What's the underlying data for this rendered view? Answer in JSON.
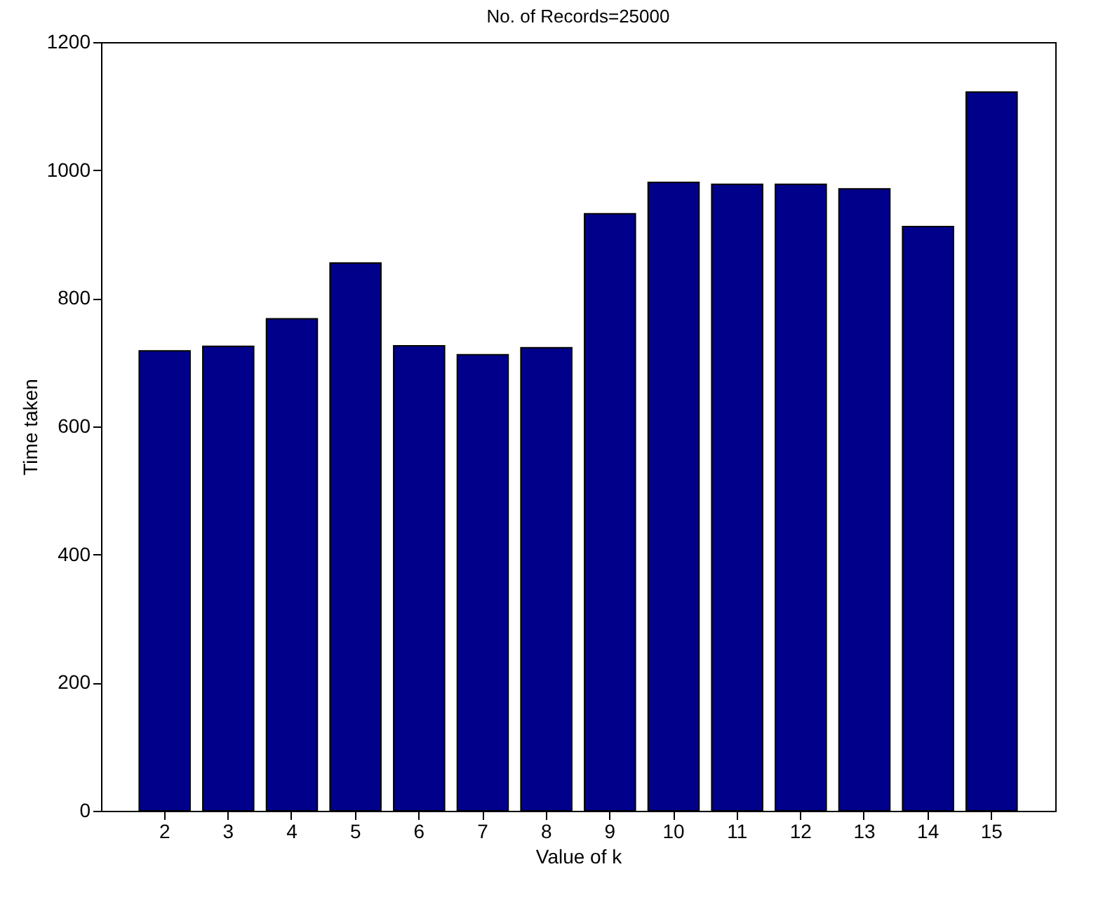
{
  "chart_data": {
    "type": "bar",
    "title": "No. of Records=25000",
    "xlabel": "Value of k",
    "ylabel": "Time taken",
    "categories": [
      "2",
      "3",
      "4",
      "5",
      "6",
      "7",
      "8",
      "9",
      "10",
      "11",
      "12",
      "13",
      "14",
      "15"
    ],
    "values": [
      718,
      725,
      768,
      855,
      726,
      712,
      723,
      932,
      981,
      978,
      978,
      971,
      912,
      1122
    ],
    "color": "#00008b",
    "ylim": [
      0,
      1200
    ],
    "yticks": [
      0,
      200,
      400,
      600,
      800,
      1000,
      1200
    ],
    "grid": false
  }
}
